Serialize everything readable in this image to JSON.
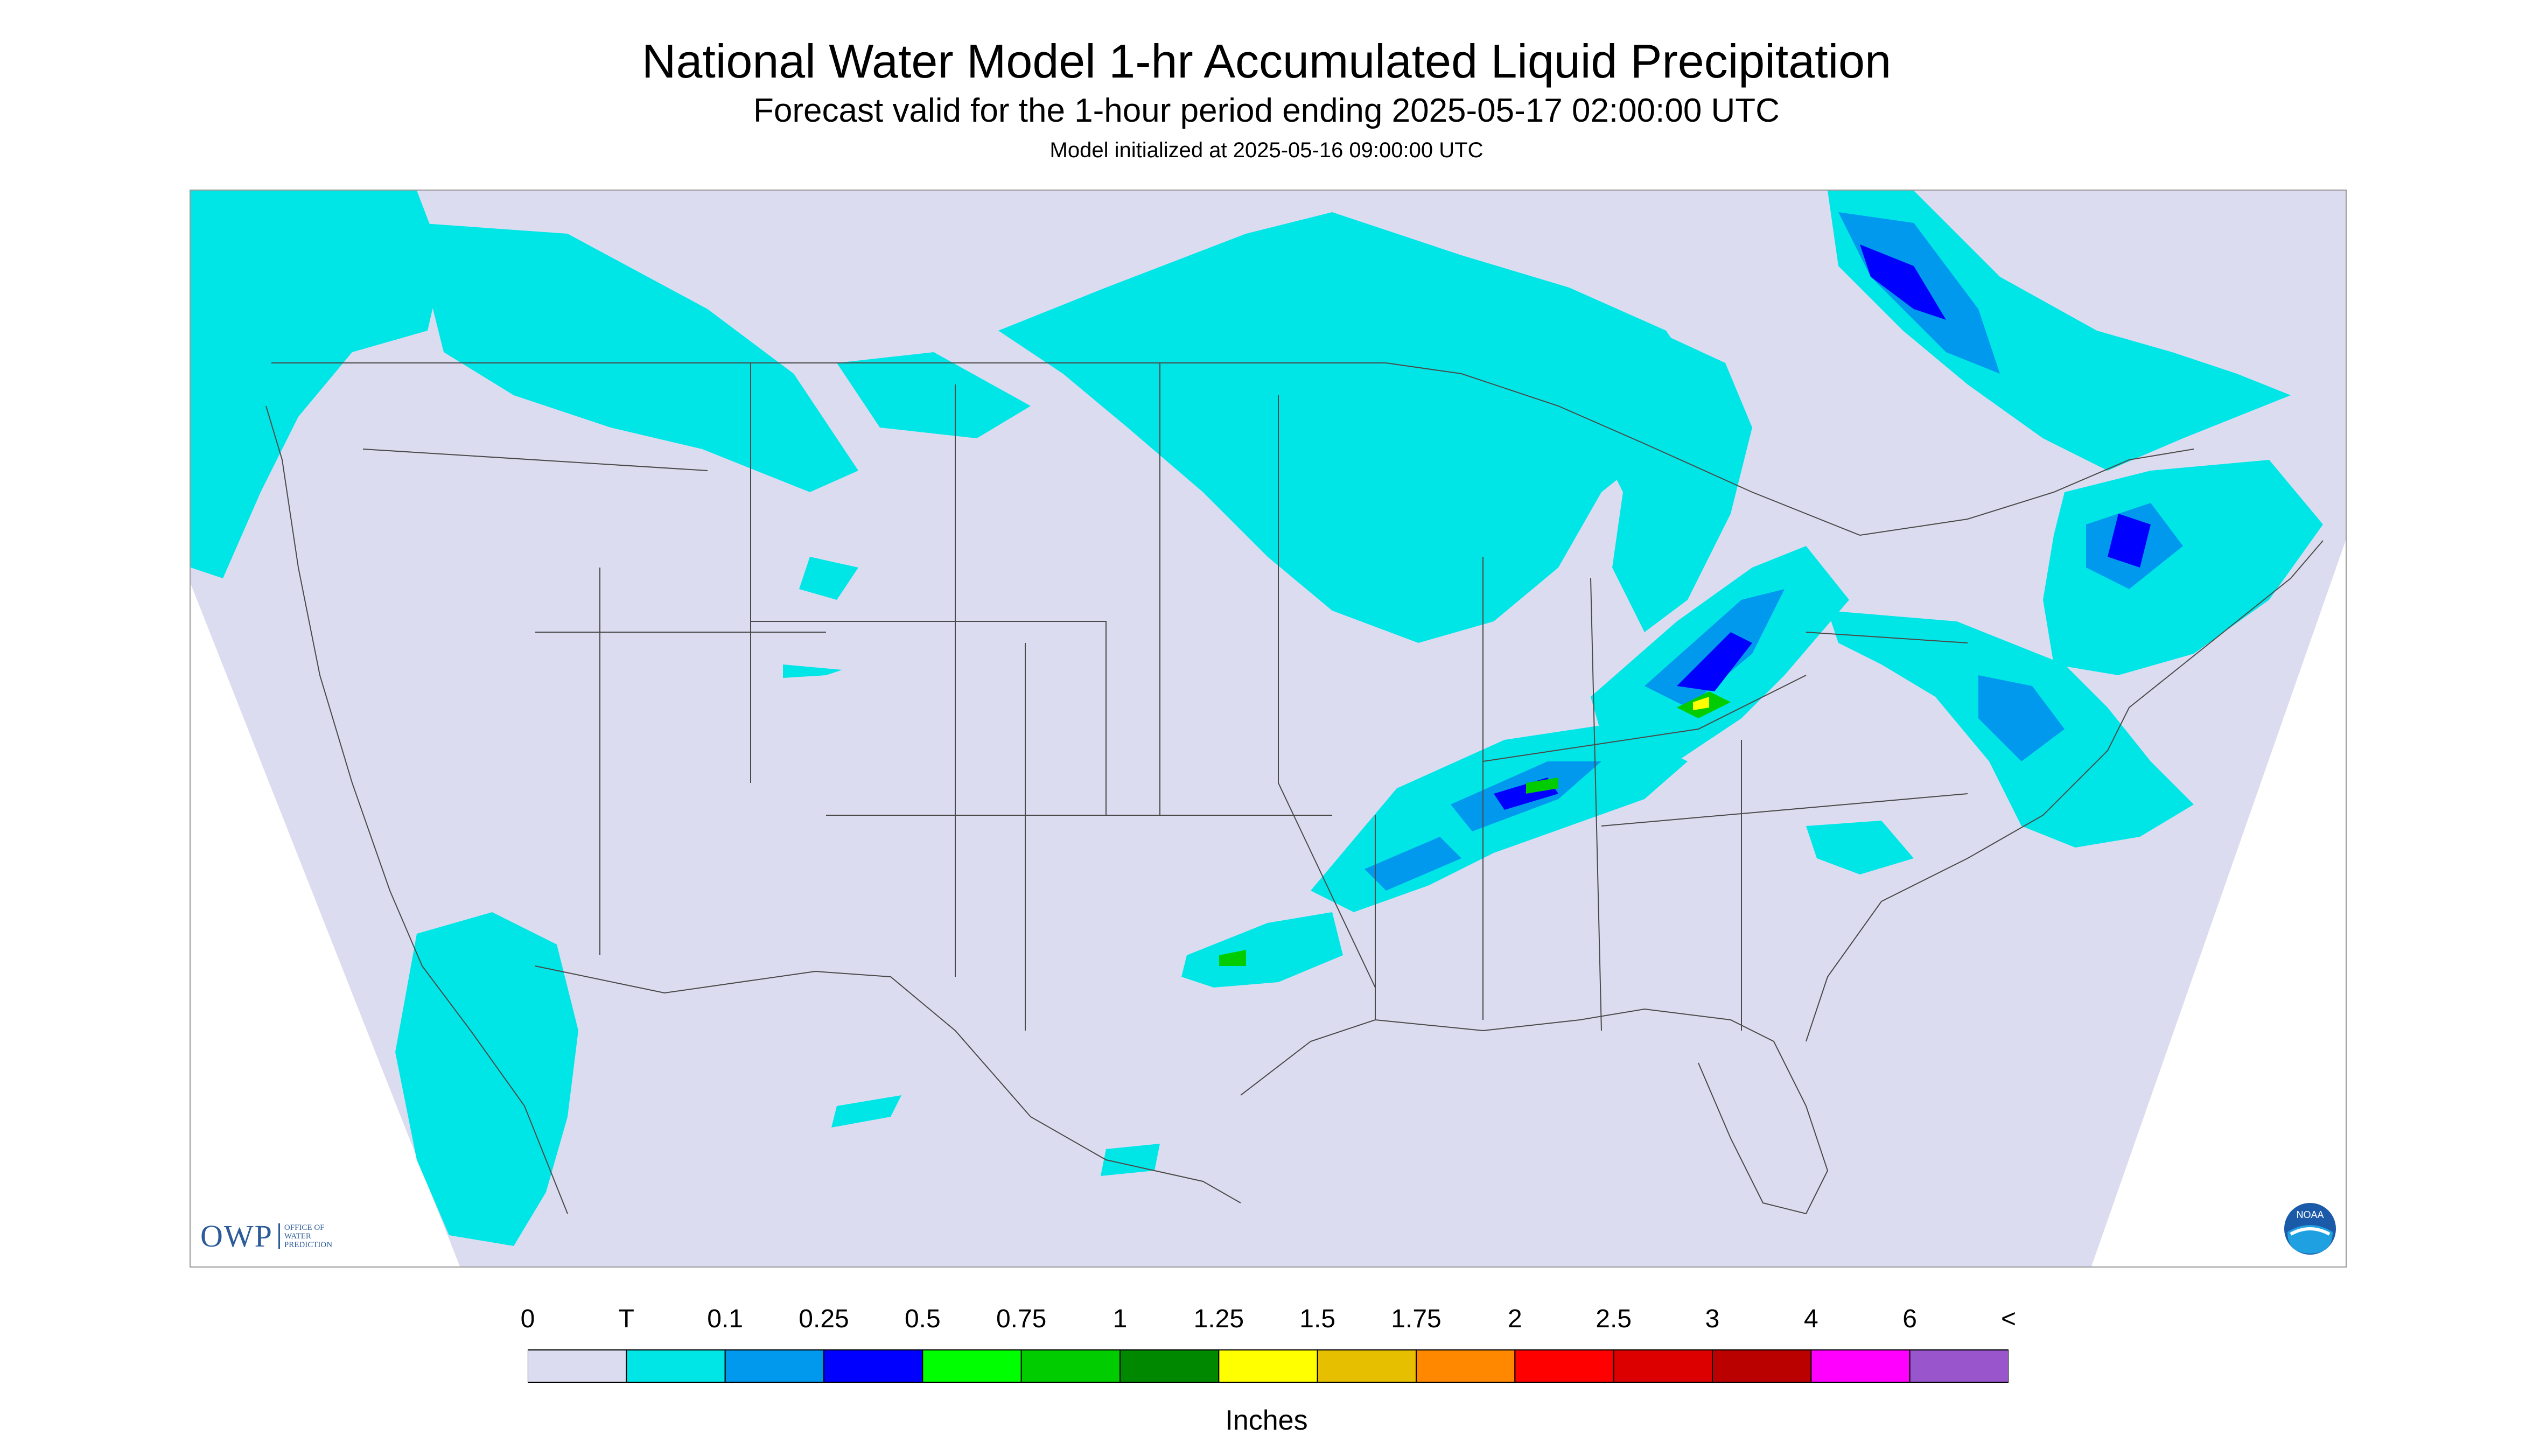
{
  "header": {
    "title": "National Water Model 1-hr Accumulated Liquid Precipitation",
    "subtitle": "Forecast valid for the 1-hour period ending 2025-05-17 02:00:00 UTC",
    "init": "Model initialized at 2025-05-16 09:00:00 UTC"
  },
  "map": {
    "region": "Contiguous United States",
    "projection_bg": "#dcdcf0",
    "boundary_color": "#4a4a4a",
    "precip_areas": [
      {
        "area": "Pacific Northwest / Northern Rockies",
        "class": "T"
      },
      {
        "area": "Northern Plains / Upper Midwest",
        "class": "T"
      },
      {
        "area": "Ontario / Quebec / Northeast",
        "class": "0.1-1"
      },
      {
        "area": "Ohio Valley / Mid-South band",
        "class": "0.1-1.75"
      },
      {
        "area": "Mid-Atlantic coast",
        "class": "0.1-0.5"
      },
      {
        "area": "Southern California / Baja",
        "class": "T"
      },
      {
        "area": "East Texas",
        "class": "0.1-0.75"
      }
    ]
  },
  "logos": {
    "owp_text": "OWP",
    "owp_sub": [
      "OFFICE OF",
      "WATER",
      "PREDICTION"
    ],
    "noaa_text": "NOAA"
  },
  "legend": {
    "labels": [
      "0",
      "T",
      "0.1",
      "0.25",
      "0.5",
      "0.75",
      "1",
      "1.25",
      "1.5",
      "1.75",
      "2",
      "2.5",
      "3",
      "4",
      "6",
      "<"
    ],
    "colors": [
      "#dcdcf0",
      "#00e6e6",
      "#0099ee",
      "#0000ff",
      "#00ff00",
      "#00cc00",
      "#008800",
      "#ffff00",
      "#e6bf00",
      "#ff8800",
      "#ff0000",
      "#dd0000",
      "#bb0000",
      "#ff00ff",
      "#9955cc"
    ],
    "unit_label": "Inches"
  }
}
